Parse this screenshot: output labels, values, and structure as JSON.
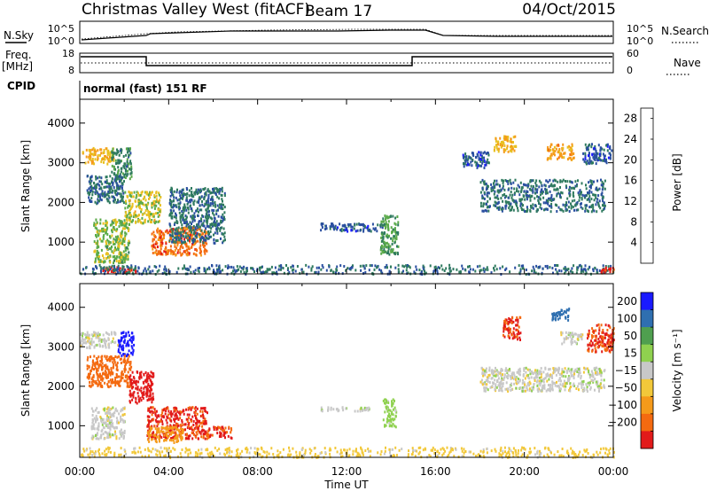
{
  "header": {
    "station": "Christmas Valley West (fitACF)",
    "beam": "Beam 17",
    "date": "04/Oct/2015"
  },
  "noise_panel": {
    "left_label": "N.Sky",
    "left_ticks": [
      "10^5",
      "10^0"
    ],
    "right_ticks": [
      "10^5",
      "10^0"
    ],
    "right_label": "N.Search"
  },
  "freq_panel": {
    "left_label_line1": "Freq.",
    "left_label_line2": "[MHz]",
    "left_ticks": [
      "18",
      "8"
    ],
    "right_ticks": [
      "60",
      "0"
    ],
    "right_label": "Nave"
  },
  "cpid": {
    "label": "CPID",
    "value": "normal (fast) 151 RF"
  },
  "colors": {
    "power_scale": [
      "#1a1aff",
      "#2a4fa0",
      "#2f7a5f",
      "#5aaa4a",
      "#e8c020",
      "#f59a1a",
      "#f46a10",
      "#e21a1a"
    ],
    "velocity_scale": [
      "#e21a1a",
      "#f46a10",
      "#f59a1a",
      "#f2c83a",
      "#c8c8c8",
      "#8fd14f",
      "#4f9f4f",
      "#2f6fb0",
      "#1a1aff"
    ]
  },
  "chart_data": [
    {
      "type": "heatmap",
      "name_ref": "power",
      "ylabel": "Slant Range [km]",
      "yticks": [
        1000,
        2000,
        3000,
        4000
      ],
      "ylim": [
        200,
        4600
      ],
      "xlim": [
        0,
        24
      ],
      "colorbar_label": "Power [dB]",
      "colorbar_ticks": [
        4,
        8,
        12,
        16,
        20,
        24,
        28
      ],
      "colorbar_range": [
        0,
        30
      ],
      "regions": [
        {
          "t0": 0.1,
          "t1": 1.5,
          "r0": 3000,
          "r1": 3400,
          "val": 18
        },
        {
          "t0": 1.4,
          "t1": 2.3,
          "r0": 2600,
          "r1": 3400,
          "val": 10
        },
        {
          "t0": 0.3,
          "t1": 2.0,
          "r0": 2000,
          "r1": 2700,
          "val": 8
        },
        {
          "t0": 2.0,
          "t1": 3.6,
          "r0": 1500,
          "r1": 2300,
          "val": 16
        },
        {
          "t0": 0.6,
          "t1": 2.2,
          "r0": 500,
          "r1": 1600,
          "val": 14
        },
        {
          "t0": 3.2,
          "t1": 5.7,
          "r0": 700,
          "r1": 1400,
          "val": 24
        },
        {
          "t0": 4.0,
          "t1": 6.5,
          "r0": 1000,
          "r1": 2400,
          "val": 8
        },
        {
          "t0": 1.0,
          "t1": 2.5,
          "r0": 250,
          "r1": 400,
          "val": 28
        },
        {
          "t0": 0.0,
          "t1": 24.0,
          "r0": 220,
          "r1": 450,
          "val": 8
        },
        {
          "t0": 10.8,
          "t1": 13.6,
          "r0": 1300,
          "r1": 1500,
          "val": 6
        },
        {
          "t0": 13.5,
          "t1": 14.3,
          "r0": 700,
          "r1": 1700,
          "val": 12
        },
        {
          "t0": 18.0,
          "t1": 23.6,
          "r0": 1800,
          "r1": 2600,
          "val": 8
        },
        {
          "t0": 17.2,
          "t1": 18.4,
          "r0": 2900,
          "r1": 3300,
          "val": 6
        },
        {
          "t0": 18.6,
          "t1": 19.6,
          "r0": 3300,
          "r1": 3700,
          "val": 18
        },
        {
          "t0": 21.0,
          "t1": 22.2,
          "r0": 3100,
          "r1": 3500,
          "val": 20
        },
        {
          "t0": 22.6,
          "t1": 23.9,
          "r0": 3000,
          "r1": 3500,
          "val": 6
        },
        {
          "t0": 23.4,
          "t1": 24.0,
          "r0": 250,
          "r1": 400,
          "val": 28
        }
      ]
    },
    {
      "type": "heatmap",
      "name_ref": "velocity",
      "ylabel": "Slant Range [km]",
      "yticks": [
        1000,
        2000,
        3000,
        4000
      ],
      "ylim": [
        200,
        4600
      ],
      "xlim": [
        0,
        24
      ],
      "xticks": [
        "00:00",
        "04:00",
        "08:00",
        "12:00",
        "16:00",
        "20:00",
        "00:00"
      ],
      "xlabel": "Time UT",
      "colorbar_label": "Velocity [m s⁻¹]",
      "colorbar_ticks": [
        "200",
        "100",
        "50",
        "15",
        "−15",
        "−50",
        "−100",
        "−200"
      ],
      "regions": [
        {
          "t0": 0.0,
          "t1": 1.7,
          "r0": 3000,
          "r1": 3400,
          "val": 0
        },
        {
          "t0": 1.7,
          "t1": 2.4,
          "r0": 2800,
          "r1": 3400,
          "val": 220
        },
        {
          "t0": 0.3,
          "t1": 2.3,
          "r0": 2000,
          "r1": 2800,
          "val": -150
        },
        {
          "t0": 2.2,
          "t1": 3.3,
          "r0": 1600,
          "r1": 2400,
          "val": -220
        },
        {
          "t0": 0.5,
          "t1": 2.0,
          "r0": 700,
          "r1": 1500,
          "val": 0
        },
        {
          "t0": 3.0,
          "t1": 5.7,
          "r0": 700,
          "r1": 1500,
          "val": -210
        },
        {
          "t0": 3.0,
          "t1": 4.6,
          "r0": 600,
          "r1": 1000,
          "val": -70
        },
        {
          "t0": 5.5,
          "t1": 6.8,
          "r0": 700,
          "r1": 1000,
          "val": -200
        },
        {
          "t0": 0.0,
          "t1": 24.0,
          "r0": 220,
          "r1": 480,
          "val": -30
        },
        {
          "t0": 13.6,
          "t1": 14.2,
          "r0": 1000,
          "r1": 1700,
          "val": 30
        },
        {
          "t0": 10.8,
          "t1": 13.2,
          "r0": 1400,
          "r1": 1500,
          "val": 0
        },
        {
          "t0": 18.0,
          "t1": 23.6,
          "r0": 1900,
          "r1": 2500,
          "val": 0
        },
        {
          "t0": 19.0,
          "t1": 19.8,
          "r0": 3200,
          "r1": 3800,
          "val": -200
        },
        {
          "t0": 21.2,
          "t1": 22.0,
          "r0": 3700,
          "r1": 4000,
          "val": 150
        },
        {
          "t0": 21.6,
          "t1": 22.6,
          "r0": 3100,
          "r1": 3400,
          "val": 0
        },
        {
          "t0": 22.8,
          "t1": 24.0,
          "r0": 2900,
          "r1": 3600,
          "val": -200
        }
      ]
    }
  ]
}
